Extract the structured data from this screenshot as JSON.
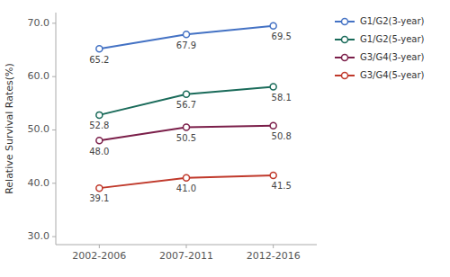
{
  "chart_data": {
    "type": "line",
    "categories": [
      "2002-2006",
      "2007-2011",
      "2012-2016"
    ],
    "series": [
      {
        "name": "G1/G2(3-year)",
        "color": "#4472C4",
        "values": [
          65.2,
          67.9,
          69.5
        ]
      },
      {
        "name": "G1/G2(5-year)",
        "color": "#1A6B5A",
        "values": [
          52.8,
          56.7,
          58.1
        ]
      },
      {
        "name": "G3/G4(3-year)",
        "color": "#7B1F4A",
        "values": [
          48.0,
          50.5,
          50.8
        ],
        "value_labels": [
          "48.0",
          "50.5",
          "50.8"
        ]
      },
      {
        "name": "G3/G4(5-year)",
        "color": "#C0392B",
        "values": [
          39.1,
          41.0,
          41.5
        ],
        "value_labels": [
          "39.1",
          "41.0",
          "41.5"
        ]
      }
    ],
    "y_label": "Relative Survival Rates(%)",
    "ylim": [
      28.5,
      72.0
    ],
    "yticks": [
      {
        "value": 30.0,
        "label": "30.0"
      },
      {
        "value": 40.0,
        "label": "40.0"
      },
      {
        "value": 50.0,
        "label": "50.0"
      },
      {
        "value": 60.0,
        "label": "60.0"
      },
      {
        "value": 70.0,
        "label": "70.0"
      }
    ],
    "marker": "circle",
    "data_labels": true,
    "grid": false,
    "legend": "right"
  }
}
